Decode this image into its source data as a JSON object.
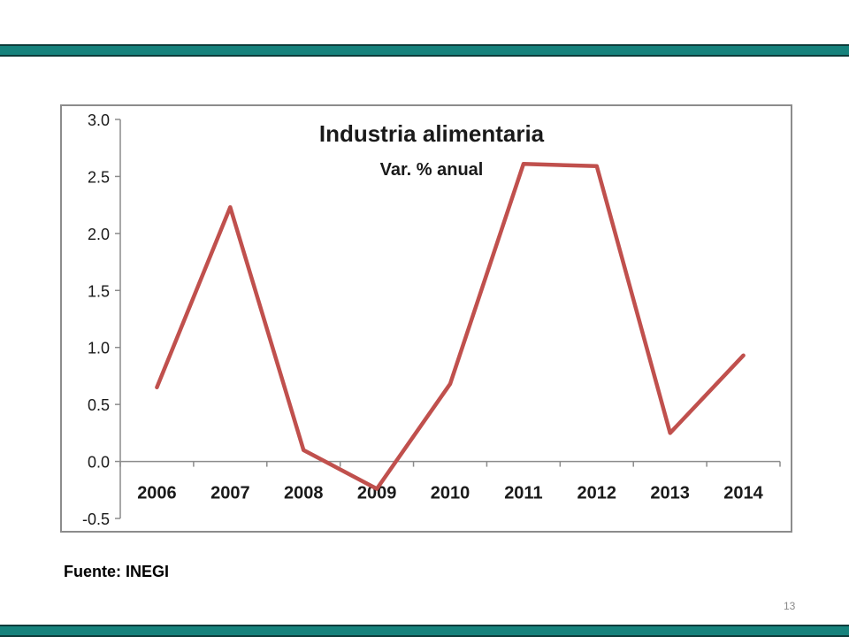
{
  "slide": {
    "source_text": "Fuente: INEGI",
    "page_number": "13",
    "band_color": "#16827c"
  },
  "chart_data": {
    "type": "line",
    "title": "Industria alimentaria",
    "subtitle": "Var. % anual",
    "categories": [
      "2006",
      "2007",
      "2008",
      "2009",
      "2010",
      "2011",
      "2012",
      "2013",
      "2014"
    ],
    "series": [
      {
        "values": [
          0.65,
          2.23,
          0.1,
          -0.24,
          0.68,
          2.61,
          2.59,
          0.25,
          0.93
        ],
        "color": "#c0504d"
      }
    ],
    "yticks": [
      "3.0",
      "2.5",
      "2.0",
      "1.5",
      "1.0",
      "0.5",
      "0.0",
      "-0.5"
    ],
    "ylim": [
      -0.5,
      3.0
    ],
    "grid": false,
    "legend": "none"
  }
}
